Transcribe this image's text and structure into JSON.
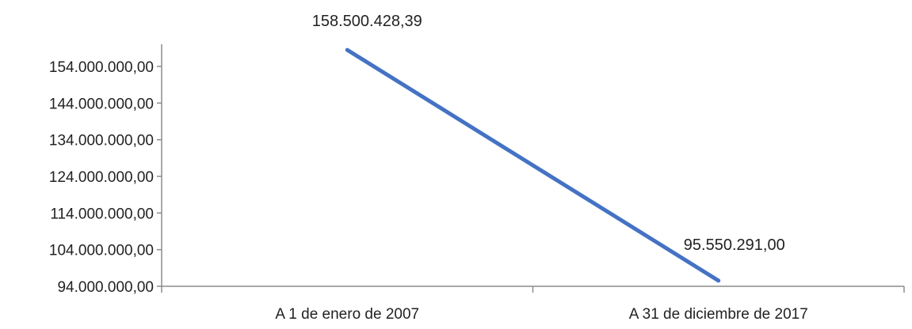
{
  "chart_data": {
    "type": "line",
    "categories": [
      "A 1 de enero de 2007",
      "A 31 de diciembre de 2017"
    ],
    "values": [
      158500428.39,
      95550291.0
    ],
    "data_labels": [
      "158.500.428,39",
      "95.550.291,00"
    ],
    "title": "",
    "xlabel": "",
    "ylabel": "",
    "ylim": [
      94000000,
      154000000
    ],
    "y_ticks": [
      94000000,
      104000000,
      114000000,
      124000000,
      134000000,
      144000000,
      154000000
    ],
    "y_tick_labels": [
      "94.000.000,00",
      "104.000.000,00",
      "114.000.000,00",
      "124.000.000,00",
      "134.000.000,00",
      "144.000.000,00",
      "154.000.000,00"
    ],
    "grid": false,
    "legend": "none",
    "line_color": "#4472C4"
  }
}
